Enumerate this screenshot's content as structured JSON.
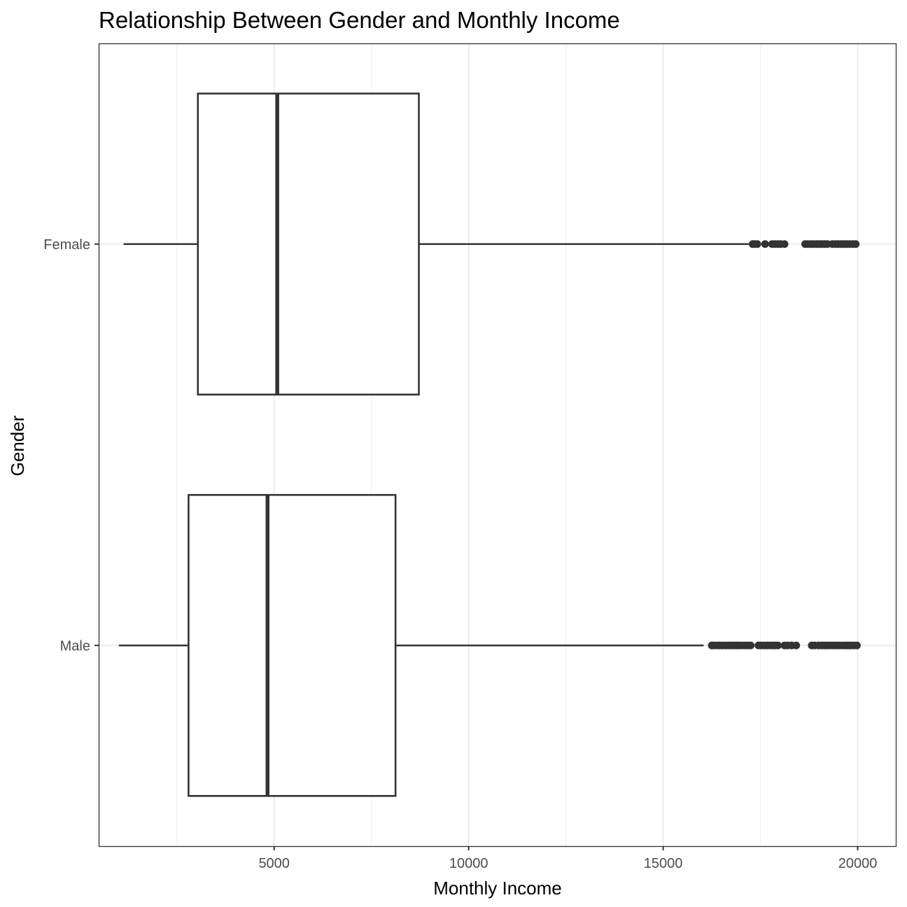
{
  "chart_data": {
    "type": "boxplot",
    "orientation": "horizontal",
    "title": "Relationship Between Gender and Monthly Income",
    "xlabel": "Monthly Income",
    "ylabel": "Gender",
    "xlim": [
      490,
      20980
    ],
    "x_ticks": [
      5000,
      10000,
      15000,
      20000
    ],
    "x_tick_labels": [
      "5000",
      "10000",
      "15000",
      "20000"
    ],
    "grid": "on",
    "legend": "none",
    "categories": [
      "Female",
      "Male"
    ],
    "series": [
      {
        "category": "Female",
        "whisker_low": 1130,
        "q1": 3040,
        "median": 5080,
        "q3": 8720,
        "whisker_high": 17200,
        "outliers": [
          17300,
          17350,
          17420,
          17620,
          17800,
          17880,
          17950,
          18020,
          18120,
          18650,
          18720,
          18800,
          18870,
          18950,
          19020,
          19080,
          19150,
          19220,
          19350,
          19430,
          19500,
          19580,
          19650,
          19720,
          19800,
          19880,
          19950
        ]
      },
      {
        "category": "Male",
        "whisker_low": 1010,
        "q1": 2800,
        "median": 4830,
        "q3": 8120,
        "whisker_high": 16040,
        "outliers": [
          16250,
          16300,
          16380,
          16450,
          16520,
          16600,
          16680,
          16750,
          16820,
          16880,
          16950,
          17020,
          17100,
          17180,
          17250,
          17450,
          17520,
          17600,
          17680,
          17750,
          17820,
          17880,
          17950,
          18120,
          18200,
          18300,
          18420,
          18820,
          18900,
          19000,
          19080,
          19150,
          19220,
          19300,
          19380,
          19450,
          19520,
          19600,
          19680,
          19750,
          19820,
          19900,
          19980
        ]
      }
    ],
    "colors": {
      "box_stroke": "#333333",
      "outlier_fill": "#333333",
      "grid_major": "#ebebeb",
      "grid_minor": "#f2f2f2",
      "panel_border": "#333333"
    }
  }
}
